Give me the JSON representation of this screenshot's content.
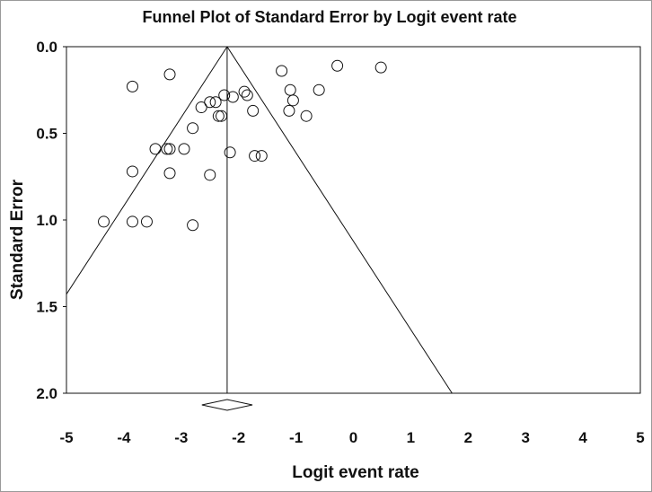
{
  "chart_data": {
    "type": "scatter",
    "title": "Funnel Plot of Standard Error by Logit event rate",
    "xlabel": "Logit event rate",
    "ylabel": "Standard Error",
    "xlim": [
      -5,
      5
    ],
    "ylim": [
      0,
      2
    ],
    "y_inverted": true,
    "x_ticks": [
      "-5",
      "-4",
      "-3",
      "-2",
      "-1",
      "0",
      "1",
      "2",
      "3",
      "4",
      "5"
    ],
    "y_ticks": [
      "0.0",
      "0.5",
      "1.0",
      "1.5",
      "2.0"
    ],
    "grid": false,
    "legend": "none",
    "pooled_estimate": -2.2,
    "funnel_slope_per_se": 1.96,
    "summary_diamond": {
      "center": -2.2,
      "lower": -2.64,
      "upper": -1.76
    },
    "points": [
      {
        "x": -3.85,
        "y": 0.23
      },
      {
        "x": -3.2,
        "y": 0.16
      },
      {
        "x": -1.25,
        "y": 0.14
      },
      {
        "x": -0.28,
        "y": 0.11
      },
      {
        "x": 0.48,
        "y": 0.12
      },
      {
        "x": -1.9,
        "y": 0.26
      },
      {
        "x": -1.85,
        "y": 0.28
      },
      {
        "x": -2.1,
        "y": 0.29
      },
      {
        "x": -2.25,
        "y": 0.28
      },
      {
        "x": -2.4,
        "y": 0.32
      },
      {
        "x": -2.5,
        "y": 0.32
      },
      {
        "x": -2.65,
        "y": 0.35
      },
      {
        "x": -1.1,
        "y": 0.25
      },
      {
        "x": -1.05,
        "y": 0.31
      },
      {
        "x": -0.6,
        "y": 0.25
      },
      {
        "x": -1.75,
        "y": 0.37
      },
      {
        "x": -1.12,
        "y": 0.37
      },
      {
        "x": -0.82,
        "y": 0.4
      },
      {
        "x": -2.3,
        "y": 0.4
      },
      {
        "x": -2.35,
        "y": 0.4
      },
      {
        "x": -2.8,
        "y": 0.47
      },
      {
        "x": -3.45,
        "y": 0.59
      },
      {
        "x": -3.25,
        "y": 0.59
      },
      {
        "x": -3.2,
        "y": 0.59
      },
      {
        "x": -2.95,
        "y": 0.59
      },
      {
        "x": -2.15,
        "y": 0.61
      },
      {
        "x": -1.72,
        "y": 0.63
      },
      {
        "x": -1.6,
        "y": 0.63
      },
      {
        "x": -3.85,
        "y": 0.72
      },
      {
        "x": -3.2,
        "y": 0.73
      },
      {
        "x": -2.5,
        "y": 0.74
      },
      {
        "x": -4.35,
        "y": 1.01
      },
      {
        "x": -3.85,
        "y": 1.01
      },
      {
        "x": -3.6,
        "y": 1.01
      },
      {
        "x": -2.8,
        "y": 1.03
      }
    ]
  }
}
